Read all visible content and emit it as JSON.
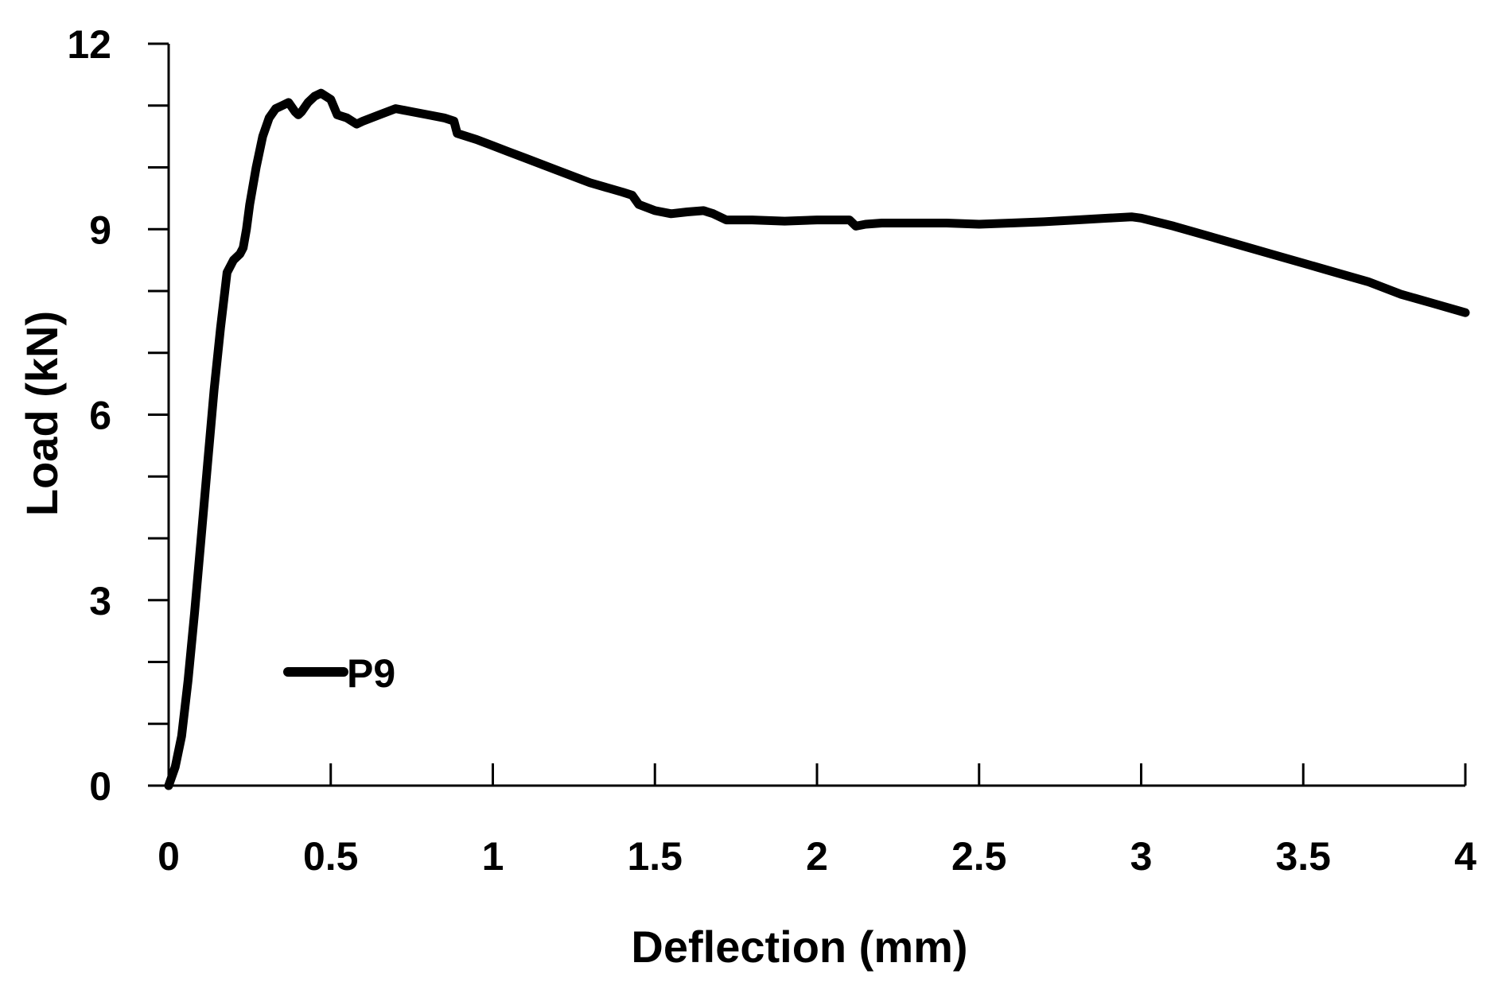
{
  "chart_data": {
    "type": "line",
    "title": "",
    "xlabel": "Deflection (mm)",
    "ylabel": "Load (kN)",
    "xlim": [
      0,
      4
    ],
    "ylim": [
      0,
      12
    ],
    "x_ticks": [
      0,
      0.5,
      1,
      1.5,
      2,
      2.5,
      3,
      3.5,
      4
    ],
    "x_tick_labels": [
      "0",
      "0.5",
      "1",
      "1.5",
      "2",
      "2.5",
      "3",
      "3.5",
      "4"
    ],
    "y_ticks": [
      0,
      3,
      6,
      9,
      12
    ],
    "y_tick_labels": [
      "0",
      "3",
      "6",
      "9",
      "12"
    ],
    "y_minor_step": 1,
    "grid": false,
    "legend_position": "lower-left",
    "colors": {
      "line": "#000000",
      "axis": "#000000"
    },
    "series": [
      {
        "name": "P9",
        "x": [
          0,
          0.02,
          0.04,
          0.06,
          0.08,
          0.1,
          0.12,
          0.14,
          0.16,
          0.18,
          0.2,
          0.22,
          0.23,
          0.24,
          0.25,
          0.27,
          0.29,
          0.31,
          0.33,
          0.35,
          0.37,
          0.39,
          0.4,
          0.41,
          0.43,
          0.45,
          0.47,
          0.5,
          0.52,
          0.55,
          0.58,
          0.6,
          0.65,
          0.7,
          0.75,
          0.8,
          0.85,
          0.88,
          0.89,
          0.95,
          1.0,
          1.05,
          1.1,
          1.2,
          1.3,
          1.4,
          1.43,
          1.45,
          1.5,
          1.55,
          1.6,
          1.65,
          1.68,
          1.72,
          1.8,
          1.9,
          2.0,
          2.1,
          2.12,
          2.15,
          2.2,
          2.3,
          2.4,
          2.5,
          2.6,
          2.7,
          2.8,
          2.9,
          2.97,
          3.0,
          3.1,
          3.2,
          3.3,
          3.4,
          3.5,
          3.6,
          3.7,
          3.8,
          3.9,
          4.0
        ],
        "y": [
          0,
          0.3,
          0.8,
          1.7,
          2.8,
          4.0,
          5.2,
          6.4,
          7.4,
          8.3,
          8.5,
          8.6,
          8.7,
          9.0,
          9.4,
          10.0,
          10.5,
          10.8,
          10.95,
          11.0,
          11.05,
          10.9,
          10.85,
          10.9,
          11.05,
          11.15,
          11.2,
          11.1,
          10.85,
          10.8,
          10.7,
          10.75,
          10.85,
          10.95,
          10.9,
          10.85,
          10.8,
          10.75,
          10.55,
          10.45,
          10.35,
          10.25,
          10.15,
          9.95,
          9.75,
          9.6,
          9.55,
          9.4,
          9.3,
          9.25,
          9.28,
          9.3,
          9.25,
          9.15,
          9.15,
          9.13,
          9.15,
          9.15,
          9.05,
          9.08,
          9.1,
          9.1,
          9.1,
          9.08,
          9.1,
          9.12,
          9.15,
          9.18,
          9.2,
          9.18,
          9.05,
          8.9,
          8.75,
          8.6,
          8.45,
          8.3,
          8.15,
          7.95,
          7.8,
          7.65
        ]
      }
    ]
  }
}
